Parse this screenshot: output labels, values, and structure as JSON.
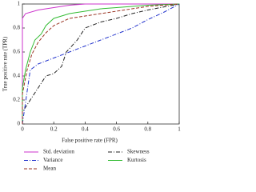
{
  "chart_data": {
    "type": "line",
    "xlabel": "False positive rate (FPR)",
    "ylabel": "True positive rate (TPR)",
    "xlim": [
      0,
      1
    ],
    "ylim": [
      0,
      1
    ],
    "xticks": [
      0,
      0.2,
      0.4,
      0.6,
      0.8,
      1
    ],
    "yticks": [
      0,
      0.2,
      0.4,
      0.6,
      0.8,
      1
    ],
    "series": [
      {
        "name": "Std. deviation",
        "color": "#cc33cc",
        "dash": "solid",
        "x": [
          0,
          0,
          0.02,
          0.1,
          0.2,
          0.3,
          0.4,
          1
        ],
        "values": [
          0,
          0.88,
          0.92,
          0.95,
          0.97,
          0.99,
          1,
          1
        ]
      },
      {
        "name": "Skewness",
        "color": "#222222",
        "dash": "dashdot",
        "x": [
          0,
          0,
          0.05,
          0.1,
          0.15,
          0.2,
          0.25,
          0.28,
          0.35,
          0.4,
          0.5,
          0.6,
          0.7,
          0.8,
          1
        ],
        "values": [
          0,
          0.1,
          0.2,
          0.3,
          0.4,
          0.42,
          0.48,
          0.6,
          0.7,
          0.8,
          0.85,
          0.88,
          0.92,
          0.95,
          1
        ]
      },
      {
        "name": "Variance",
        "color": "#2233cc",
        "dash": "dashdot",
        "x": [
          0,
          0.05,
          0.1,
          0.2,
          0.3,
          0.4,
          0.5,
          0.6,
          0.7,
          0.8,
          0.9,
          1
        ],
        "values": [
          0,
          0.45,
          0.5,
          0.55,
          0.6,
          0.65,
          0.7,
          0.75,
          0.8,
          0.87,
          0.93,
          1
        ]
      },
      {
        "name": "Kurtosis",
        "color": "#33bb33",
        "dash": "solid",
        "x": [
          0,
          0,
          0.02,
          0.05,
          0.08,
          0.12,
          0.15,
          0.2,
          0.25,
          0.3,
          0.4,
          0.5,
          0.6,
          0.8,
          1
        ],
        "values": [
          0,
          0.3,
          0.45,
          0.6,
          0.7,
          0.75,
          0.82,
          0.88,
          0.9,
          0.92,
          0.94,
          0.96,
          0.97,
          0.99,
          1
        ]
      },
      {
        "name": "Mean",
        "color": "#993322",
        "dash": "dashed",
        "x": [
          0,
          0,
          0.03,
          0.06,
          0.1,
          0.15,
          0.2,
          0.3,
          0.4,
          0.5,
          0.6,
          0.8,
          1
        ],
        "values": [
          0,
          0.25,
          0.45,
          0.58,
          0.68,
          0.76,
          0.82,
          0.88,
          0.9,
          0.92,
          0.94,
          0.98,
          1
        ]
      }
    ]
  }
}
